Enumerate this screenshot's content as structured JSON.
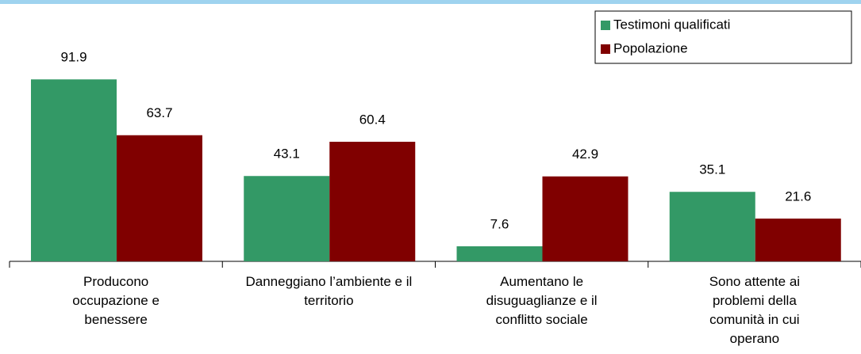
{
  "chart_data": {
    "type": "bar",
    "categories": [
      "Producono occupazione e benessere",
      "Danneggiano l’ambiente e il territorio",
      "Aumentano le disuguaglianze e il conflitto sociale",
      "Sono attente ai problemi della comunità in cui operano"
    ],
    "series": [
      {
        "name": "Testimoni qualificati",
        "color": "#339966",
        "values": [
          91.9,
          43.1,
          7.6,
          35.1
        ]
      },
      {
        "name": "Popolazione",
        "color": "#800000",
        "values": [
          63.7,
          60.4,
          42.9,
          21.6
        ]
      }
    ],
    "legend": "top-right"
  }
}
